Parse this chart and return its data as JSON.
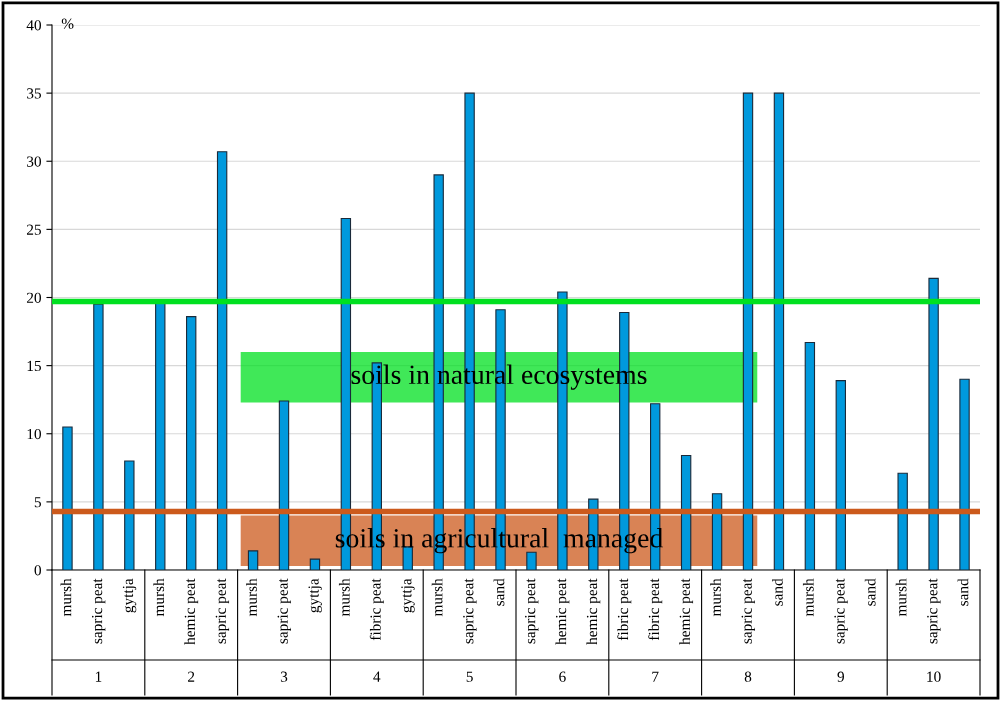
{
  "chart_data": {
    "type": "bar",
    "ylabel": "%",
    "categories": [
      "mursh",
      "sapric peat",
      "gyttja",
      "mursh",
      "hemic peat",
      "sapric peat",
      "mursh",
      "sapric peat",
      "gyttja",
      "mursh",
      "fibric peat",
      "gyttja",
      "mursh",
      "sapric peat",
      "sand",
      "sapric peat",
      "hemic peat",
      "hemic peat",
      "fibric peat",
      "fibric peat",
      "hemic peat",
      "mursh",
      "sapric peat",
      "sand",
      "mursh",
      "sapric peat",
      "sand",
      "mursh",
      "sapric peat",
      "sand"
    ],
    "values": [
      10.5,
      19.5,
      8.0,
      19.7,
      18.6,
      30.7,
      1.4,
      12.4,
      0.8,
      25.8,
      15.2,
      1.7,
      29.0,
      35.0,
      19.1,
      1.3,
      20.4,
      5.2,
      18.9,
      12.2,
      8.4,
      5.6,
      35.0,
      35.0,
      16.7,
      13.9,
      null,
      7.1,
      21.4,
      14.0
    ],
    "color": "#0099dd",
    "ylim": [
      0,
      40
    ],
    "yticks": [
      0,
      5,
      10,
      15,
      20,
      25,
      30,
      35,
      40
    ],
    "grid": "y",
    "annotations": [
      "1",
      "2",
      "3",
      "4",
      "5",
      "6",
      "7",
      "8",
      "9",
      "10"
    ],
    "ref_lines": [
      {
        "axis": "y",
        "value": 19.7,
        "label": "soils in natural ecosystems",
        "color": "#00e020"
      },
      {
        "axis": "y",
        "value": 4.3,
        "label": "soils in agricultural  managed",
        "color": "#cc5a1c"
      }
    ]
  }
}
